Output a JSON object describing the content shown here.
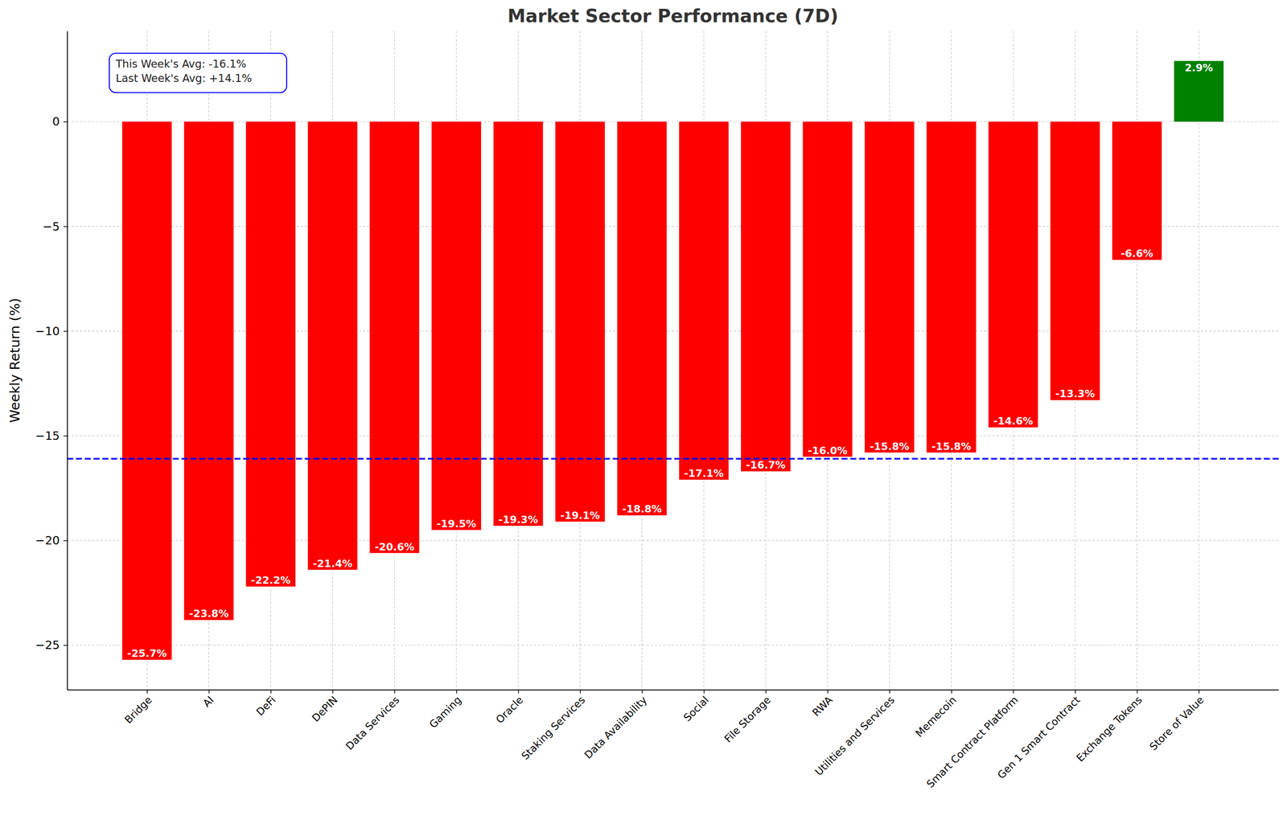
{
  "chart_data": {
    "type": "bar",
    "title": "Market Sector Performance (7D)",
    "y_label": "Weekly Return (%)",
    "categories": [
      "Bridge",
      "AI",
      "DeFi",
      "DePIN",
      "Data Services",
      "Gaming",
      "Oracle",
      "Staking Services",
      "Data Availability",
      "Social",
      "File Storage",
      "RWA",
      "Utilities and Services",
      "Memecoin",
      "Smart Contract Platform",
      "Gen 1 Smart Contract",
      "Exchange Tokens",
      "Store of Value"
    ],
    "values": [
      -25.7,
      -23.8,
      -22.2,
      -21.4,
      -20.6,
      -19.5,
      -19.3,
      -19.1,
      -18.8,
      -17.1,
      -16.7,
      -16.0,
      -15.8,
      -15.8,
      -14.6,
      -13.3,
      -6.6,
      2.9
    ],
    "value_labels": [
      "-25.7%",
      "-23.8%",
      "-22.2%",
      "-21.4%",
      "-20.6%",
      "-19.5%",
      "-19.3%",
      "-19.1%",
      "-18.8%",
      "-17.1%",
      "-16.7%",
      "-16.0%",
      "-15.8%",
      "-15.8%",
      "-14.6%",
      "-13.3%",
      "-6.6%",
      "2.9%"
    ],
    "colors": [
      "red",
      "red",
      "red",
      "red",
      "red",
      "red",
      "red",
      "red",
      "red",
      "red",
      "red",
      "red",
      "red",
      "red",
      "red",
      "red",
      "red",
      "green"
    ],
    "data_labels": true,
    "ylim": [
      -27.13,
      4.33
    ],
    "yticks": [
      {
        "value": -25,
        "label": "−25"
      },
      {
        "value": -20,
        "label": "−20"
      },
      {
        "value": -15,
        "label": "−15"
      },
      {
        "value": -10,
        "label": "−10"
      },
      {
        "value": -5,
        "label": "−5"
      },
      0
    ],
    "grid": true,
    "reference_line": {
      "value": -16.1,
      "color": "blue",
      "line_style": "dashed"
    },
    "annotations": [
      "This Week's Avg: -16.1%",
      "Last Week's Avg: +14.1%"
    ]
  }
}
